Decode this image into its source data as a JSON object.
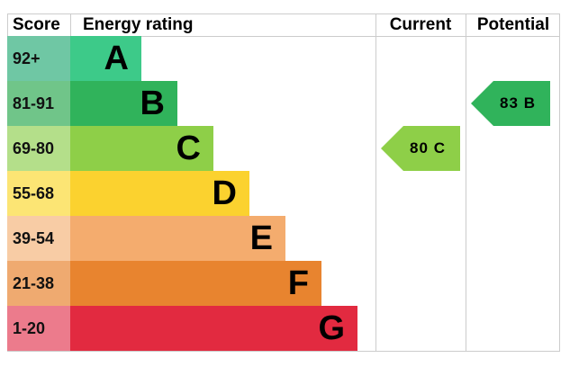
{
  "header": {
    "score": "Score",
    "rating": "Energy rating",
    "current": "Current",
    "potential": "Potential"
  },
  "bands": [
    {
      "score": "92+",
      "letter": "A",
      "color": "#3dca89",
      "light": "#6fc7a4"
    },
    {
      "score": "81-91",
      "letter": "B",
      "color": "#30b35b",
      "light": "#70c589"
    },
    {
      "score": "69-80",
      "letter": "C",
      "color": "#8ecf48",
      "light": "#b4df8a"
    },
    {
      "score": "55-68",
      "letter": "D",
      "color": "#fbd22f",
      "light": "#fce574"
    },
    {
      "score": "39-54",
      "letter": "E",
      "color": "#f4ac6e",
      "light": "#f8cca5"
    },
    {
      "score": "21-38",
      "letter": "F",
      "color": "#e8842f",
      "light": "#efaa70"
    },
    {
      "score": "1-20",
      "letter": "G",
      "color": "#e22a40",
      "light": "#ec7b8c"
    }
  ],
  "current": {
    "value": 80,
    "rating": "C",
    "color": "#8ecf48"
  },
  "potential": {
    "value": 83,
    "rating": "B",
    "color": "#30b35b"
  }
}
